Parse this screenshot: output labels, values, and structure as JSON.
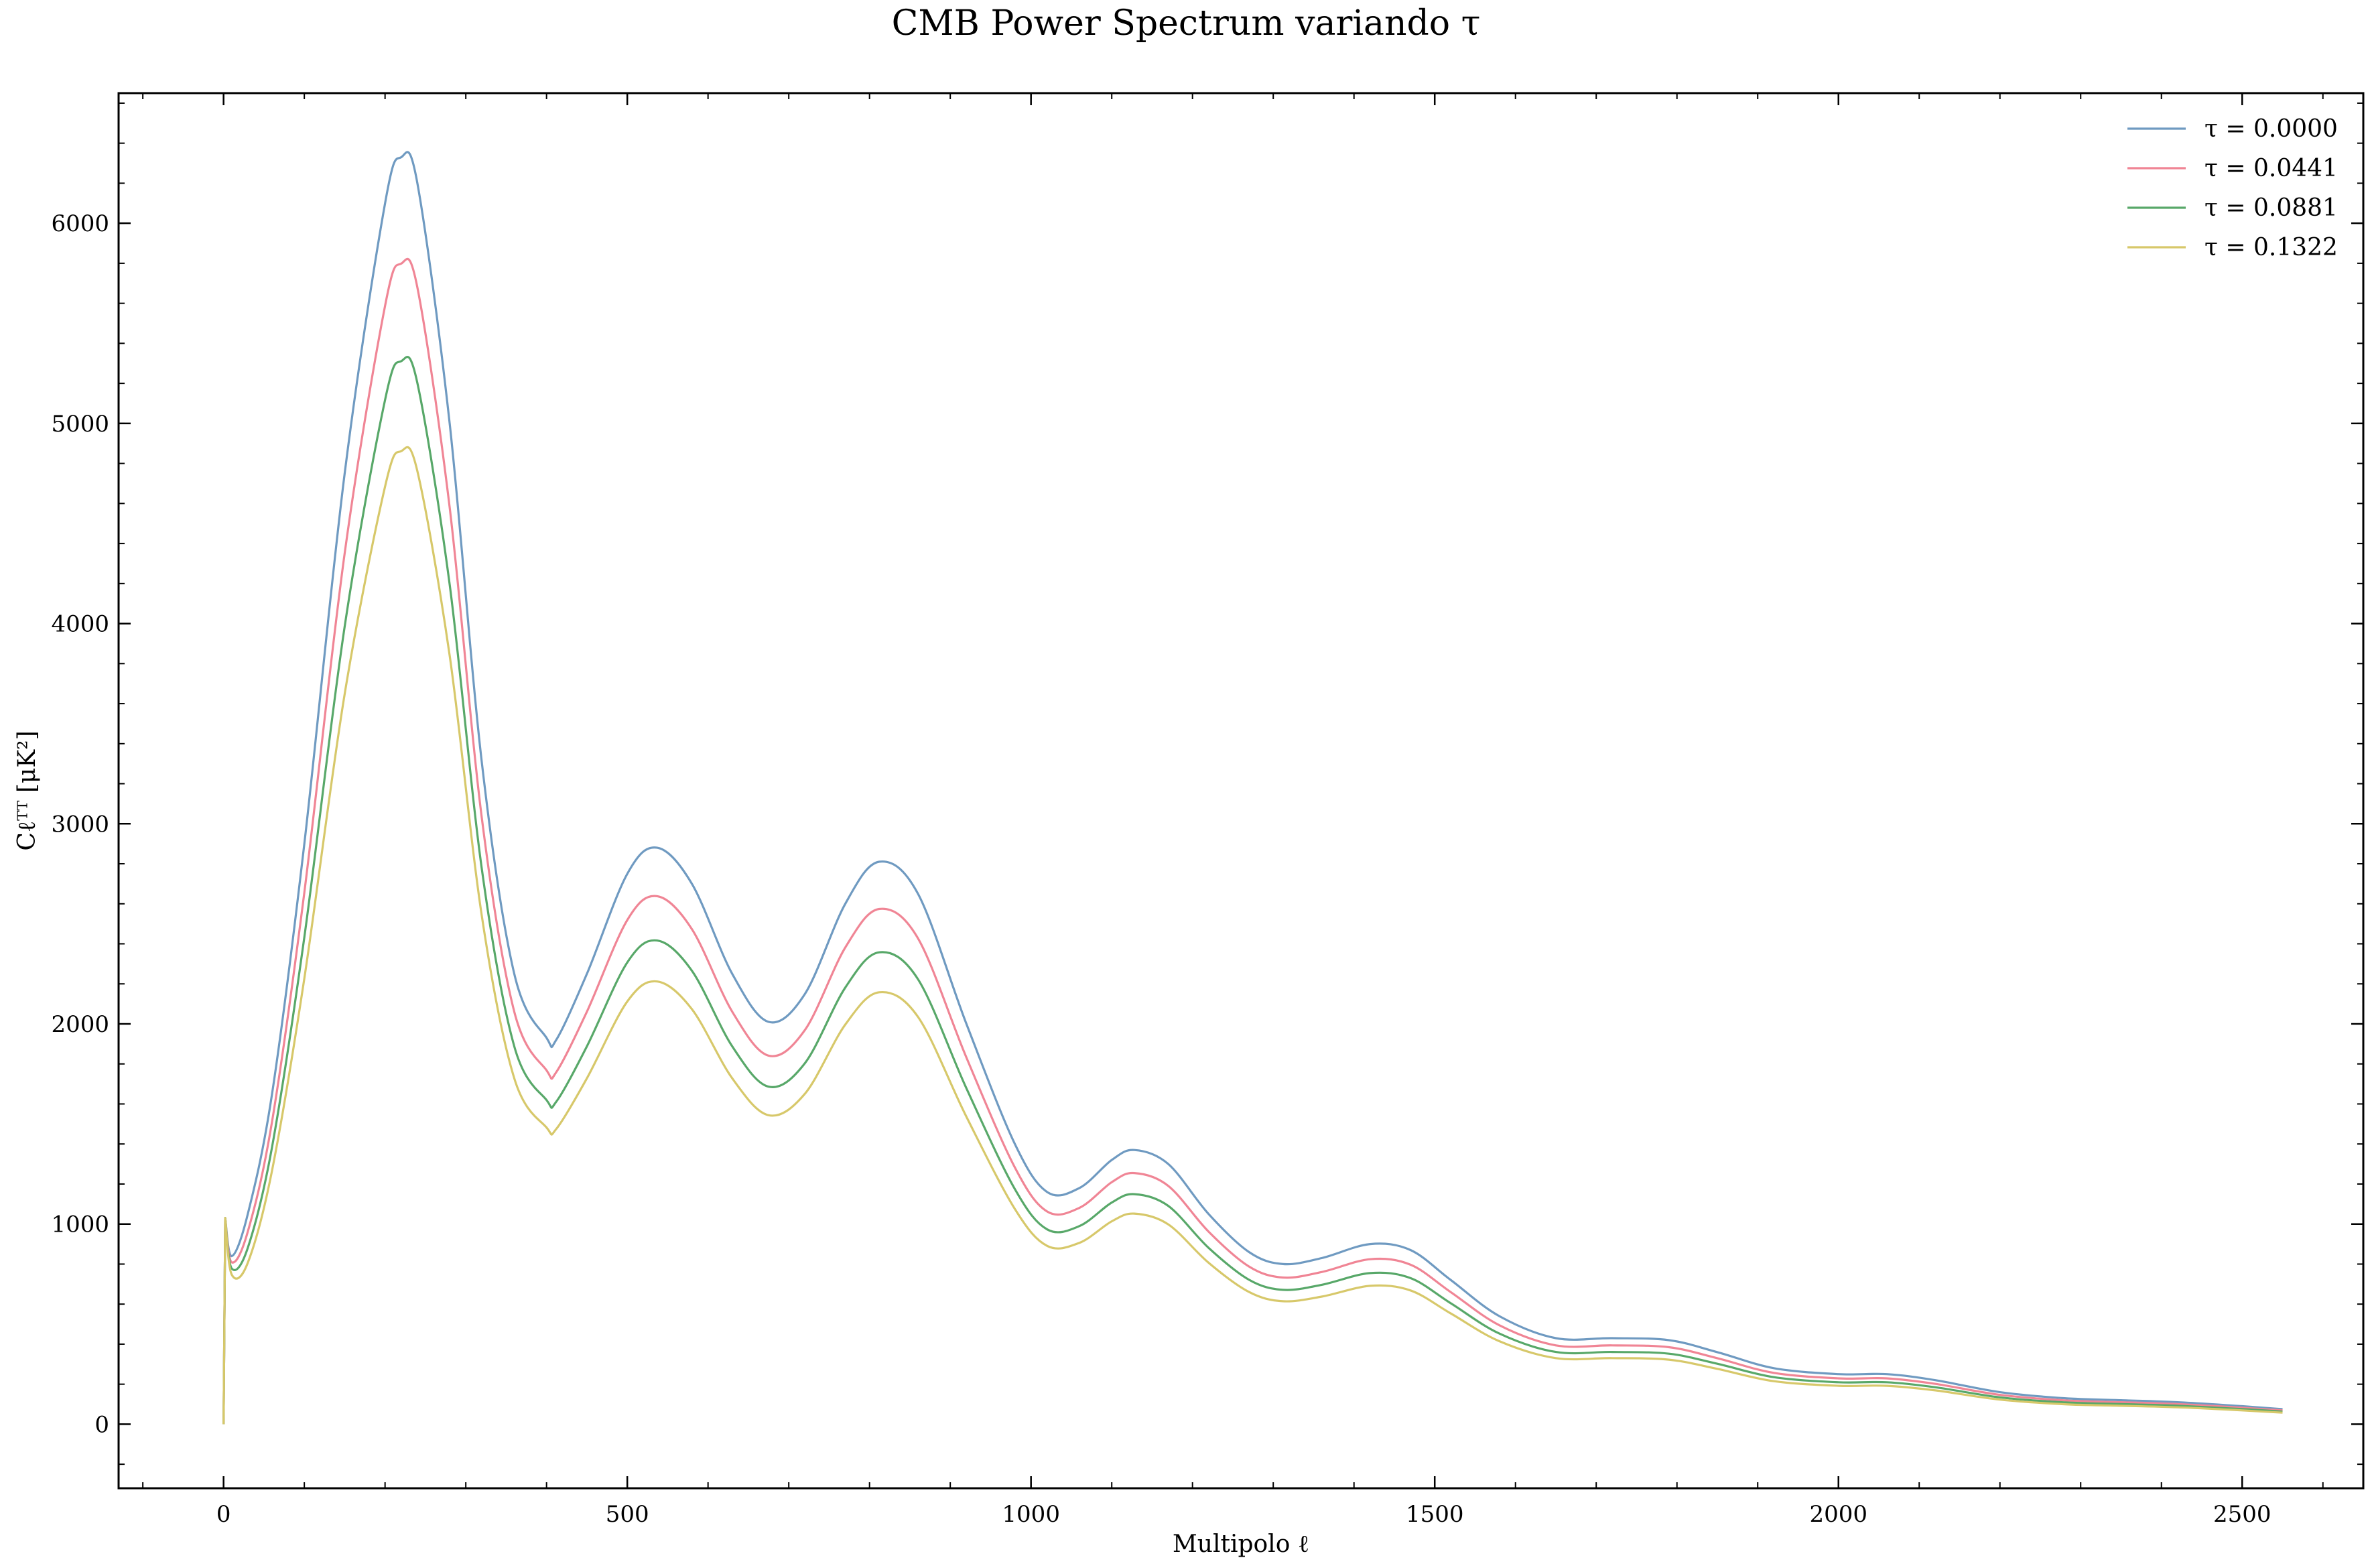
{
  "chart_data": {
    "type": "line",
    "title": "CMB Power Spectrum variando τ",
    "xlabel": "Multipolo ℓ",
    "ylabel": "Cℓᵀᵀ [μK²]",
    "xlim": [
      -130,
      2650
    ],
    "ylim": [
      -320,
      6650
    ],
    "xticks": [
      0,
      500,
      1000,
      1500,
      2000,
      2500
    ],
    "yticks": [
      0,
      1000,
      2000,
      3000,
      4000,
      5000,
      6000
    ],
    "x_minor_step": 100,
    "y_minor_step": 200,
    "grid": false,
    "legend_position": "top-right",
    "x": [
      2,
      10,
      30,
      60,
      100,
      150,
      200,
      220,
      240,
      280,
      320,
      360,
      400,
      412,
      450,
      500,
      537,
      580,
      630,
      675,
      720,
      770,
      812,
      860,
      920,
      980,
      1020,
      1060,
      1100,
      1128,
      1170,
      1220,
      1270,
      1312,
      1360,
      1420,
      1470,
      1520,
      1580,
      1650,
      1720,
      1790,
      1850,
      1920,
      2000,
      2060,
      2120,
      2200,
      2280,
      2350,
      2420,
      2500,
      2550
    ],
    "base_curve": [
      1030,
      870,
      1050,
      1650,
      2900,
      4750,
      6100,
      6330,
      6200,
      5000,
      3300,
      2250,
      1930,
      1920,
      2250,
      2750,
      2880,
      2700,
      2250,
      2010,
      2150,
      2600,
      2810,
      2650,
      2000,
      1400,
      1160,
      1180,
      1320,
      1370,
      1300,
      1050,
      860,
      800,
      830,
      900,
      870,
      720,
      540,
      430,
      430,
      420,
      360,
      280,
      250,
      250,
      220,
      160,
      130,
      120,
      110,
      90,
      75
    ],
    "series": [
      {
        "name": "τ = 0.0000",
        "color": "#6f9ac1",
        "scale": 1.0
      },
      {
        "name": "τ = 0.0441",
        "color": "#f08595",
        "scale": 0.916
      },
      {
        "name": "τ = 0.0881",
        "color": "#58a869",
        "scale": 0.839
      },
      {
        "name": "τ = 0.1322",
        "color": "#d7c86a",
        "scale": 0.768
      }
    ]
  }
}
